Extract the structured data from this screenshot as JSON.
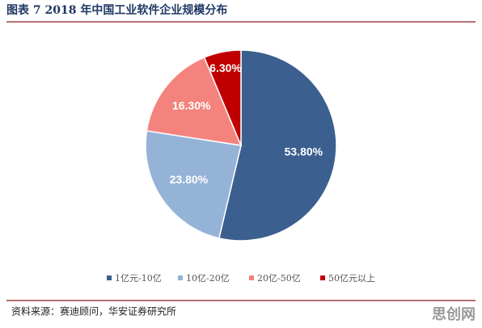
{
  "chart_data": {
    "type": "pie",
    "title": "图表 7 2018 年中国工业软件企业规模分布",
    "categories": [
      "1亿元-10亿",
      "10亿-20亿",
      "20亿-50亿",
      "50亿元以上"
    ],
    "values": [
      53.8,
      23.8,
      16.3,
      6.3
    ],
    "value_labels": [
      "53.80%",
      "23.80%",
      "16.30%",
      "6.30%"
    ],
    "colors": [
      "#3b5f8f",
      "#95b3d7",
      "#f4837d",
      "#c00000"
    ],
    "legend": "bottom"
  },
  "source": "资料来源：赛迪顾问，华安证券研究所",
  "watermark": "思创网"
}
